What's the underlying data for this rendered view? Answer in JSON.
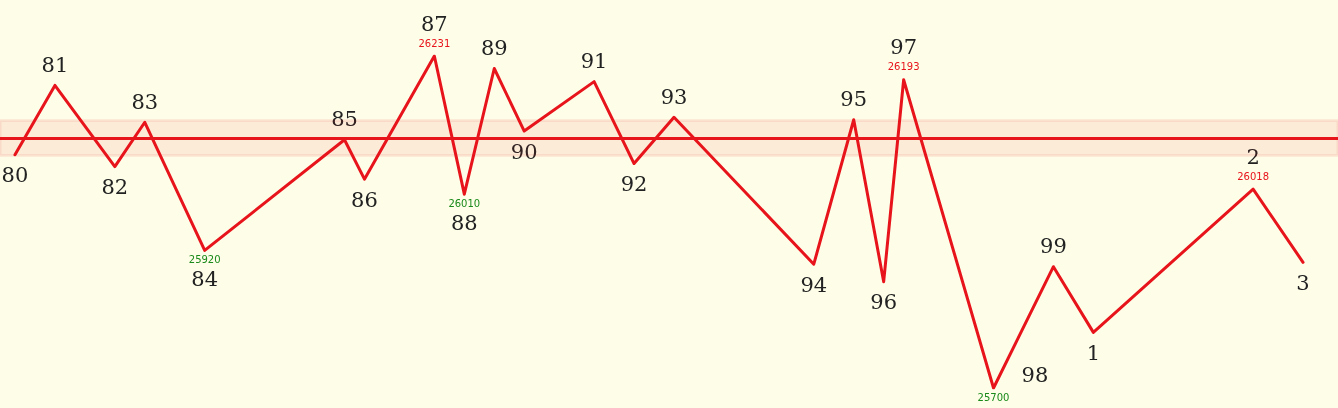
{
  "chart_data": {
    "type": "line",
    "categories": [
      null,
      null,
      null,
      null,
      null,
      null,
      null,
      null,
      null,
      null,
      null,
      null,
      null,
      null,
      null,
      null,
      null,
      null,
      null,
      null,
      null,
      null,
      null,
      null,
      null,
      null,
      null,
      null,
      null,
      null,
      null,
      null,
      null,
      null,
      null,
      null,
      null,
      null,
      null,
      null,
      null,
      null,
      null,
      null,
      null,
      null,
      null,
      null,
      null,
      null,
      null,
      null,
      null,
      null,
      null,
      null,
      null,
      null,
      null,
      null,
      null,
      null,
      null,
      null,
      null,
      null,
      null,
      null,
      null,
      null,
      null,
      null,
      null,
      null,
      null,
      null,
      null,
      null,
      null,
      null,
      null,
      null,
      null,
      null,
      null,
      null,
      null,
      null,
      null,
      null,
      null,
      null,
      null,
      null,
      null,
      null,
      null,
      null,
      null,
      null,
      null,
      null,
      null,
      null,
      null,
      null,
      null,
      null,
      null,
      null,
      null,
      null,
      null,
      null,
      null,
      null,
      null,
      null,
      null,
      null,
      null,
      null,
      null,
      null,
      null,
      null,
      null,
      null,
      null,
      null,
      null,
      null,
      null,
      null
    ],
    "annotations": [
      "80",
      "81",
      "82",
      "83",
      "84",
      "85",
      "86",
      "87",
      "88",
      "89",
      "90",
      "91",
      "92",
      "93",
      "94",
      "95",
      "96",
      "97",
      "98",
      "99",
      "1",
      "2",
      "3"
    ],
    "series": [
      {
        "color": "#e8141b",
        "values": [
          null,
          26073,
          null,
          null,
          null,
          26184,
          null,
          null,
          null,
          null,
          null,
          26054,
          null,
          null,
          26125,
          null,
          null,
          null,
          null,
          null,
          25920,
          null,
          null,
          null,
          null,
          null,
          null,
          null,
          null,
          null,
          null,
          null,
          null,
          null,
          26097,
          null,
          26034,
          null,
          null,
          null,
          null,
          null,
          null,
          26231,
          null,
          null,
          26010,
          null,
          null,
          26211,
          null,
          null,
          26111,
          null,
          null,
          null,
          null,
          null,
          null,
          26190,
          null,
          null,
          null,
          26059,
          null,
          null,
          null,
          26133,
          null,
          null,
          null,
          null,
          null,
          null,
          null,
          null,
          null,
          null,
          null,
          null,
          null,
          25898,
          null,
          null,
          null,
          26129,
          null,
          null,
          25870,
          null,
          26193,
          null,
          null,
          null,
          null,
          null,
          null,
          null,
          null,
          25700,
          null,
          null,
          null,
          null,
          null,
          25894,
          null,
          null,
          null,
          25789,
          null,
          null,
          null,
          null,
          null,
          null,
          null,
          null,
          null,
          null,
          null,
          null,
          null,
          null,
          null,
          26018,
          null,
          null,
          null,
          null,
          25901,
          null,
          null,
          null
        ],
        "value_labels": [
          null,
          null,
          null,
          null,
          null,
          null,
          null,
          null,
          null,
          null,
          null,
          null,
          null,
          null,
          null,
          null,
          null,
          null,
          null,
          null,
          "25920",
          null,
          null,
          null,
          null,
          null,
          null,
          null,
          null,
          null,
          null,
          null,
          null,
          null,
          null,
          null,
          null,
          null,
          null,
          null,
          null,
          null,
          null,
          "26231",
          null,
          null,
          "26010",
          null,
          null,
          null,
          null,
          null,
          null,
          null,
          null,
          null,
          null,
          null,
          null,
          null,
          null,
          null,
          null,
          null,
          null,
          null,
          null,
          null,
          null,
          null,
          null,
          null,
          null,
          null,
          null,
          null,
          null,
          null,
          null,
          null,
          null,
          null,
          null,
          null,
          null,
          null,
          null,
          null,
          null,
          null,
          "26193",
          null,
          null,
          null,
          null,
          null,
          null,
          null,
          null,
          "25700",
          null,
          null,
          null,
          null,
          null,
          null,
          null,
          null,
          null,
          null,
          null,
          null,
          null,
          null,
          null,
          null,
          null,
          null,
          null,
          null,
          null,
          null,
          null,
          null,
          null,
          "26018",
          null,
          null,
          null,
          null,
          null,
          null,
          null,
          null
        ]
      }
    ],
    "ref_lines": [
      {
        "axis": "y",
        "value": 26100,
        "color": "#e8141b"
      }
    ],
    "bands": [
      {
        "axis": "y",
        "from": 26072,
        "to": 26128,
        "color": "#e8141b"
      }
    ]
  }
}
